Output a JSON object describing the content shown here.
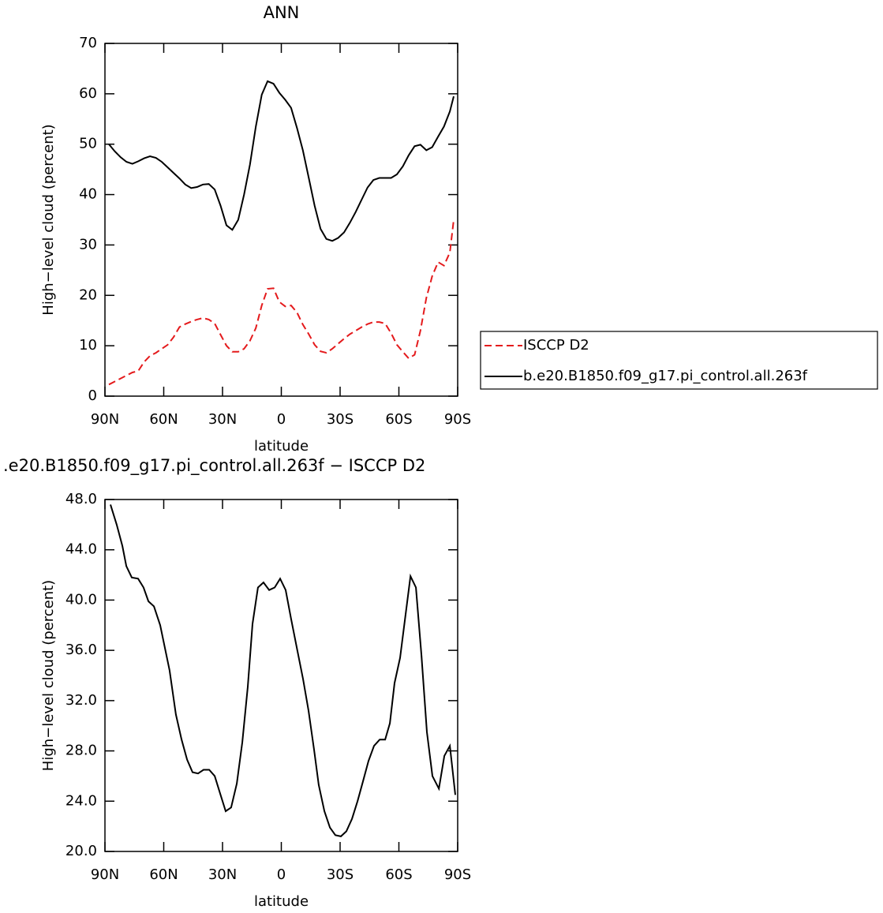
{
  "chart_data": [
    {
      "type": "line",
      "title": "ANN",
      "xlabel": "latitude",
      "ylabel": "High−level cloud (percent)",
      "legend": "right",
      "x": [
        88,
        85,
        82,
        79,
        76,
        73,
        70,
        67,
        64,
        61,
        58,
        55,
        52,
        49,
        46,
        43,
        40,
        37,
        34,
        31,
        28,
        25,
        22,
        19,
        16,
        13,
        10,
        7,
        4,
        1,
        -2,
        -5,
        -8,
        -11,
        -14,
        -17,
        -20,
        -23,
        -26,
        -29,
        -32,
        -35,
        -38,
        -41,
        -44,
        -47,
        -50,
        -53,
        -56,
        -59,
        -62,
        -65,
        -68,
        -71,
        -74,
        -77,
        -80,
        -83,
        -86,
        -88
      ],
      "series": [
        {
          "name": "ISCCP D2",
          "color": "#e41a1c",
          "dashed": true,
          "values": [
            2.3,
            2.9,
            3.5,
            4.1,
            4.7,
            5,
            6.8,
            8,
            8.6,
            9.4,
            10.2,
            11.7,
            13.7,
            14.3,
            14.8,
            15.2,
            15.5,
            15.2,
            14.4,
            12.2,
            10,
            8.8,
            8.8,
            9.4,
            11,
            13.5,
            18,
            21.3,
            21.4,
            18.7,
            17.8,
            18,
            16.6,
            14.2,
            12.3,
            10.2,
            8.9,
            8.6,
            9.4,
            10.4,
            11.4,
            12.3,
            13,
            13.7,
            14.3,
            14.7,
            14.7,
            14.4,
            12.5,
            10.2,
            8.8,
            7.5,
            8.2,
            13,
            19.5,
            23.8,
            26.6,
            25.9,
            28.5,
            35
          ]
        },
        {
          "name": "b.e20.B1850.f09_g17.pi_control.all.263f",
          "color": "#000000",
          "dashed": false,
          "values": [
            50,
            48.6,
            47.4,
            46.5,
            46.1,
            46.6,
            47.2,
            47.6,
            47.3,
            46.5,
            45.4,
            44.3,
            43.2,
            42,
            41.3,
            41.5,
            42,
            42.1,
            41,
            37.8,
            33.9,
            33,
            35,
            40,
            46,
            53.5,
            59.8,
            62.5,
            62,
            60.2,
            58.8,
            57.2,
            53.2,
            48.8,
            43.3,
            37.8,
            33.2,
            31.2,
            30.8,
            31.4,
            32.5,
            34.4,
            36.6,
            39,
            41.4,
            42.9,
            43.3,
            43.3,
            43.3,
            44,
            45.6,
            47.8,
            49.6,
            49.9,
            48.8,
            49.4,
            51.5,
            53.5,
            56.5,
            59.5
          ]
        }
      ],
      "xlim": [
        90,
        -90
      ],
      "xticks": [
        {
          "value": 90,
          "label": "90N"
        },
        {
          "value": 60,
          "label": "60N"
        },
        {
          "value": 30,
          "label": "30N"
        },
        0,
        {
          "value": -30,
          "label": "30S"
        },
        {
          "value": -60,
          "label": "60S"
        },
        {
          "value": -90,
          "label": "90S"
        }
      ],
      "ylim": [
        0,
        70
      ],
      "yticks": [
        0,
        10,
        20,
        30,
        40,
        50,
        60,
        70
      ]
    },
    {
      "type": "line",
      "title": ".e20.B1850.f09_g17.pi_control.all.263f − ISCCP D2",
      "xlabel": "latitude",
      "ylabel": "High−level cloud (percent)",
      "x": [
        87.2,
        84,
        81.1,
        79.1,
        76.3,
        73.1,
        70.3,
        67.8,
        65,
        61.8,
        57,
        53.8,
        50.9,
        48.1,
        45.3,
        42.5,
        39.7,
        36.8,
        34,
        31.2,
        28.4,
        25.6,
        22.7,
        19.9,
        17.1,
        14.7,
        11.9,
        9.1,
        6.2,
        3.4,
        0.6,
        -2.2,
        -5,
        -8.3,
        -11.1,
        -13.9,
        -16.7,
        -19.1,
        -22,
        -24.8,
        -27.6,
        -30.4,
        -33.2,
        -36.1,
        -38.9,
        -41.7,
        -44.5,
        -47.3,
        -50.2,
        -53,
        -55.4,
        -57.8,
        -60.6,
        -63.4,
        -65.9,
        -68.7,
        -71.5,
        -74.3,
        -77.1,
        -80.4,
        -83.2,
        -86,
        -88.8
      ],
      "series": [
        {
          "color": "#000000",
          "dashed": false,
          "values": [
            47.6,
            46,
            44.3,
            42.7,
            41.8,
            41.7,
            41,
            39.9,
            39.5,
            38,
            34.4,
            30.9,
            28.9,
            27.3,
            26.3,
            26.2,
            26.5,
            26.5,
            26,
            24.6,
            23.2,
            23.5,
            25.4,
            28.7,
            33.1,
            38.1,
            41,
            41.4,
            40.8,
            41,
            41.7,
            40.8,
            38.5,
            35.9,
            33.7,
            31.2,
            28.1,
            25.3,
            23.2,
            21.9,
            21.3,
            21.2,
            21.6,
            22.6,
            24,
            25.6,
            27.2,
            28.4,
            28.9,
            28.9,
            30.2,
            33.4,
            35.4,
            38.8,
            41.9,
            41,
            35.6,
            29.5,
            26,
            25,
            27.6,
            28.4,
            24.5
          ]
        }
      ],
      "xlim": [
        90,
        -90
      ],
      "xticks": [
        {
          "value": 90,
          "label": "90N"
        },
        {
          "value": 60,
          "label": "60N"
        },
        {
          "value": 30,
          "label": "30N"
        },
        0,
        {
          "value": -30,
          "label": "30S"
        },
        {
          "value": -60,
          "label": "60S"
        },
        {
          "value": -90,
          "label": "90S"
        }
      ],
      "ylim": [
        20,
        48
      ],
      "yticks": [
        {
          "value": 20,
          "label": "20.0"
        },
        {
          "value": 24,
          "label": "24.0"
        },
        {
          "value": 28,
          "label": "28.0"
        },
        {
          "value": 32,
          "label": "32.0"
        },
        {
          "value": 36,
          "label": "36.0"
        },
        {
          "value": 40,
          "label": "40.0"
        },
        {
          "value": 44,
          "label": "44.0"
        },
        {
          "value": 48,
          "label": "48.0"
        }
      ]
    }
  ]
}
